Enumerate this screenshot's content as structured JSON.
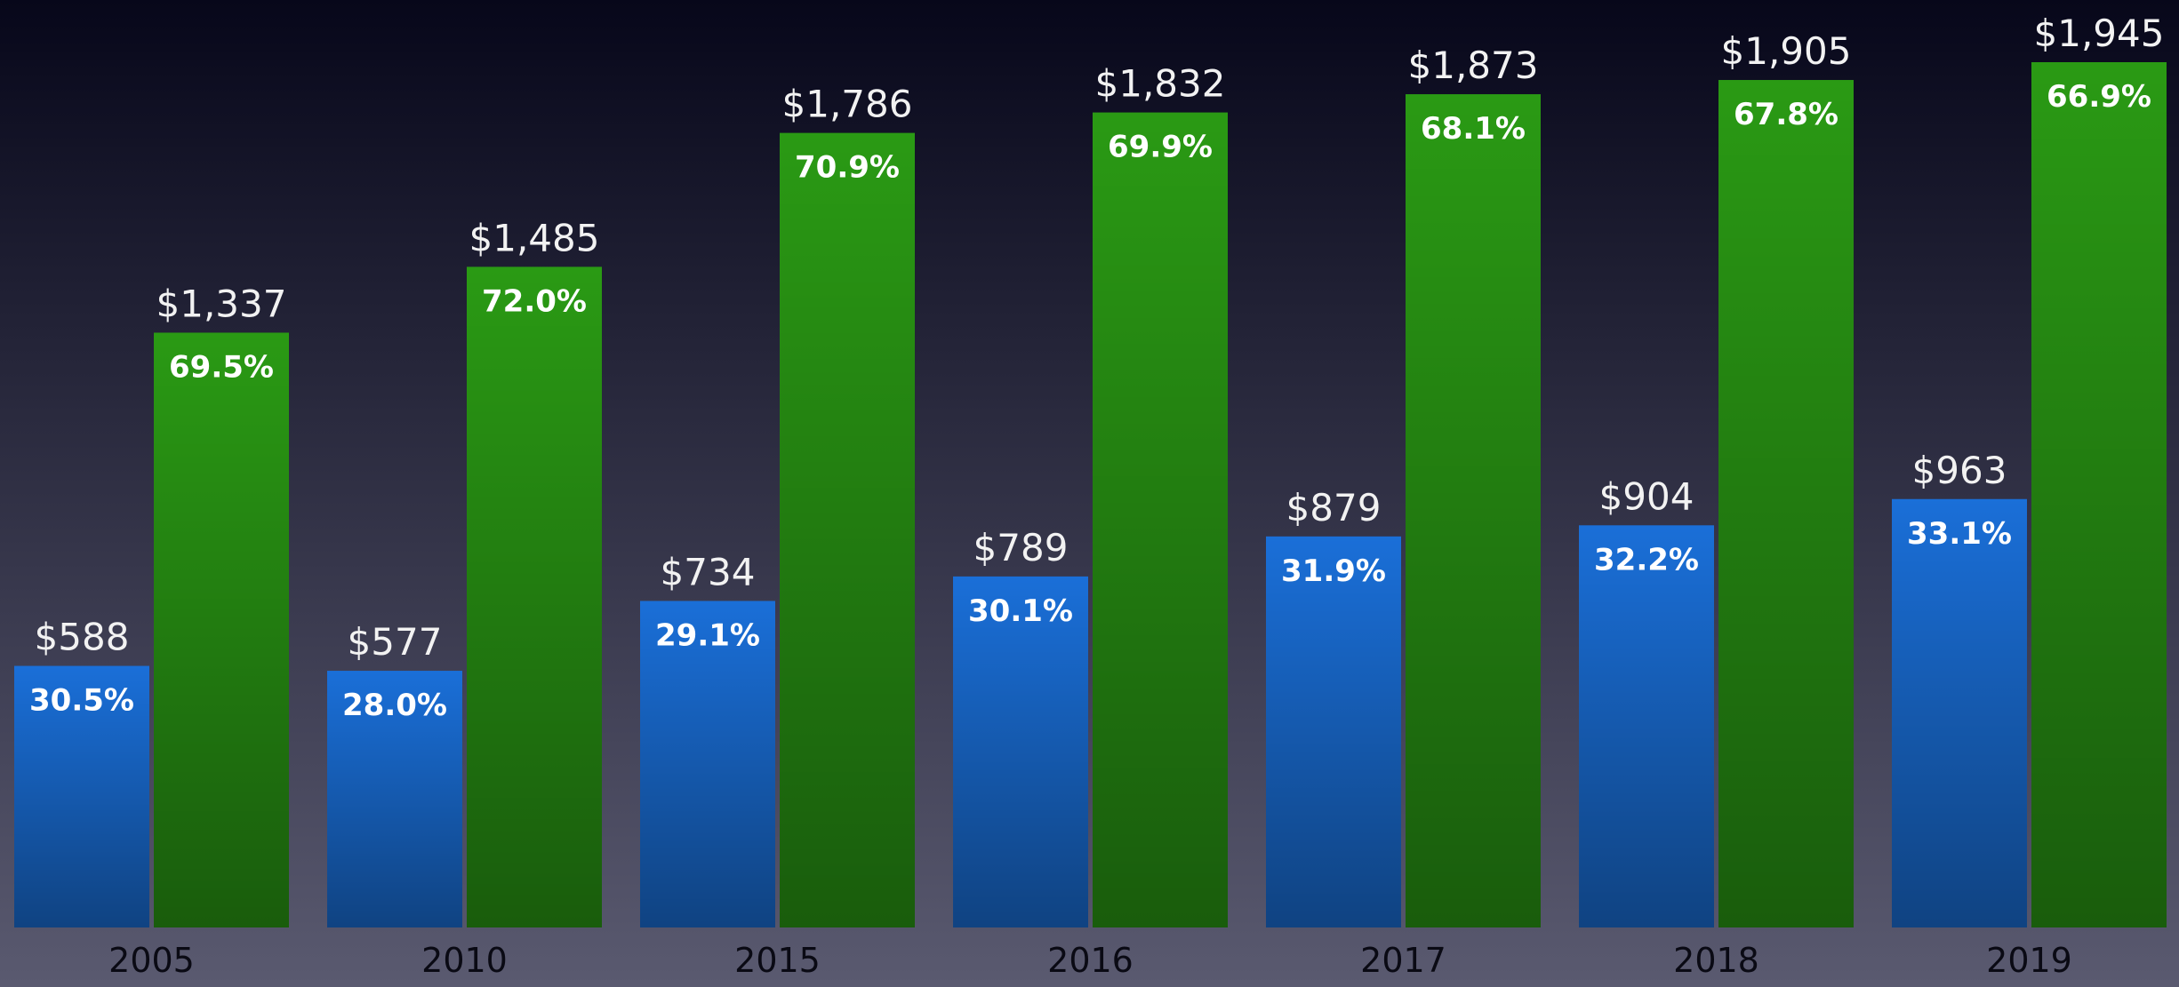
{
  "chart_data": {
    "type": "bar",
    "categories": [
      "2005",
      "2010",
      "2015",
      "2016",
      "2017",
      "2018",
      "2019"
    ],
    "series": [
      {
        "color": "#1a6fd8",
        "values": [
          588,
          577,
          734,
          789,
          879,
          904,
          963
        ],
        "value_labels": [
          "$588",
          "$577",
          "$734",
          "$789",
          "$879",
          "$904",
          "$963"
        ],
        "shares": [
          30.5,
          28.0,
          29.1,
          30.1,
          31.9,
          32.2,
          33.1
        ],
        "share_labels": [
          "30.5%",
          "28.0%",
          "29.1%",
          "30.1%",
          "31.9%",
          "32.2%",
          "33.1%"
        ]
      },
      {
        "color": "#2a9a14",
        "values": [
          1337,
          1485,
          1786,
          1832,
          1873,
          1905,
          1945
        ],
        "value_labels": [
          "$1,337",
          "$1,485",
          "$1,786",
          "$1,832",
          "$1,873",
          "$1,905",
          "$1,945"
        ],
        "shares": [
          69.5,
          72.0,
          70.9,
          69.9,
          68.1,
          67.8,
          66.9
        ],
        "share_labels": [
          "69.5%",
          "72.0%",
          "70.9%",
          "69.9%",
          "68.1%",
          "67.8%",
          "66.9%"
        ]
      }
    ]
  }
}
